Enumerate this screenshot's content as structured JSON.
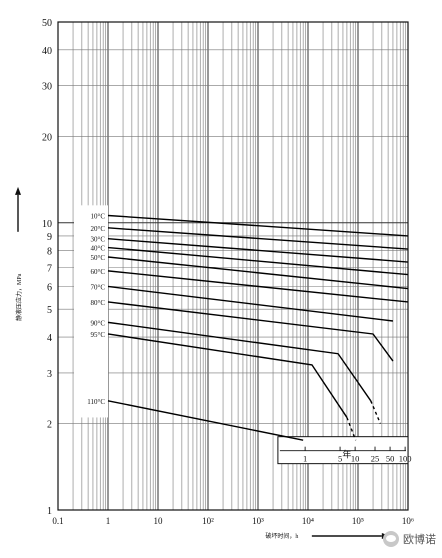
{
  "chart_data": {
    "type": "line",
    "title": "",
    "xlabel": "破坏时间，h",
    "ylabel": "静液压应力，MPa",
    "xscale": "log",
    "yscale": "log",
    "xlim": [
      0.1,
      1000000
    ],
    "ylim": [
      1,
      50
    ],
    "grid": true,
    "x_ticks": [
      "0.1",
      "1",
      "10",
      "10²",
      "10³",
      "10⁴",
      "10⁵",
      "10⁶"
    ],
    "y_ticks": [
      "1",
      "2",
      "3",
      "4",
      "5",
      "6",
      "7",
      "8",
      "9",
      "10",
      "20",
      "30",
      "40",
      "50"
    ],
    "series": [
      {
        "name": "10°C",
        "x": [
          1,
          1000000
        ],
        "y": [
          10.6,
          9.0
        ]
      },
      {
        "name": "20°C",
        "x": [
          1,
          1000000
        ],
        "y": [
          9.6,
          8.1
        ]
      },
      {
        "name": "30°C",
        "x": [
          1,
          1000000
        ],
        "y": [
          8.8,
          7.3
        ]
      },
      {
        "name": "40°C",
        "x": [
          1,
          1000000
        ],
        "y": [
          8.2,
          6.6
        ]
      },
      {
        "name": "50°C",
        "x": [
          1,
          1000000
        ],
        "y": [
          7.6,
          5.9
        ]
      },
      {
        "name": "60°C",
        "x": [
          1,
          1000000
        ],
        "y": [
          6.8,
          5.3
        ]
      },
      {
        "name": "70°C",
        "x": [
          1,
          500000
        ],
        "y": [
          6.0,
          4.55
        ]
      },
      {
        "name": "80°C",
        "x": [
          1,
          200000,
          500000
        ],
        "y": [
          5.3,
          4.1,
          3.3
        ]
      },
      {
        "name": "90°C",
        "x": [
          1,
          40000,
          180000
        ],
        "y": [
          4.5,
          3.5,
          2.4
        ]
      },
      {
        "name": "95°C",
        "x": [
          1,
          12000,
          60000
        ],
        "y": [
          4.1,
          3.2,
          2.1
        ]
      },
      {
        "name": "110°C",
        "x": [
          1,
          8000
        ],
        "y": [
          2.4,
          1.75
        ]
      }
    ],
    "series_dashed": [
      {
        "name": "90°C",
        "x": [
          180000,
          280000
        ],
        "y": [
          2.4,
          2.0
        ]
      },
      {
        "name": "95°C",
        "x": [
          60000,
          90000
        ],
        "y": [
          2.1,
          1.75
        ]
      }
    ],
    "years_scale": {
      "unit_label": "年",
      "ticks": [
        {
          "label": "1",
          "hours": 8760
        },
        {
          "label": "5",
          "hours": 43800
        },
        {
          "label": "10",
          "hours": 87600
        },
        {
          "label": "25",
          "hours": 219000
        },
        {
          "label": "50",
          "hours": 438000
        },
        {
          "label": "100",
          "hours": 876000
        }
      ]
    }
  },
  "watermark": "欧博诺"
}
